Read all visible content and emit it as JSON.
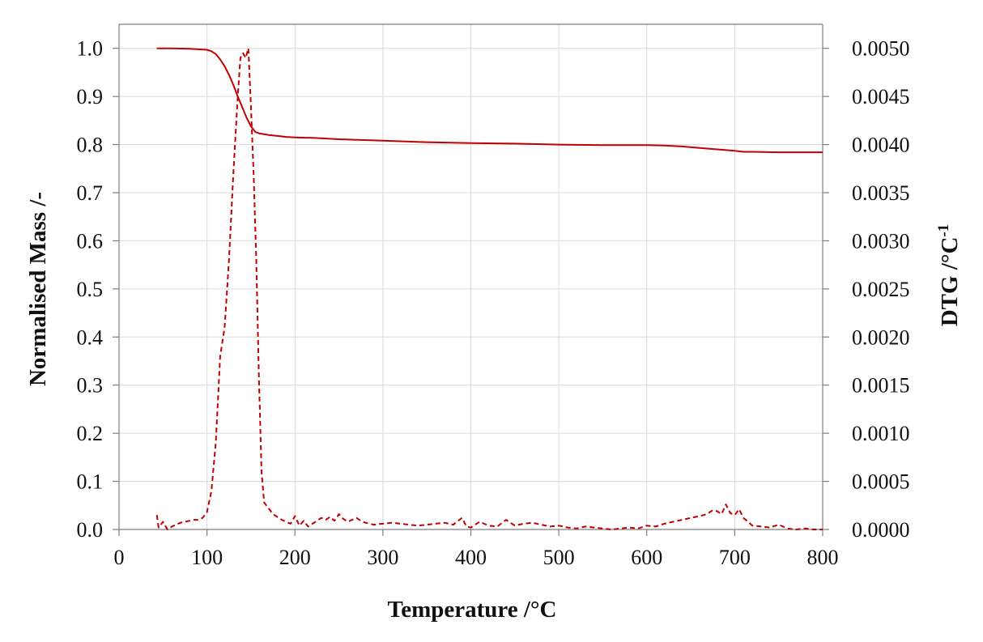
{
  "chart_data": {
    "type": "line",
    "xlabel": "Temperature /°C",
    "ylabel": "Normalised Mass /-",
    "y2label_main": "DTG  /°C",
    "y2label_sup": "-1",
    "xlim": [
      0,
      800
    ],
    "ylim": [
      0,
      1.05
    ],
    "y2lim": [
      0,
      0.00525
    ],
    "xticks": [
      "0",
      "100",
      "200",
      "300",
      "400",
      "500",
      "600",
      "700",
      "800"
    ],
    "yticks": [
      "0.0",
      "0.1",
      "0.2",
      "0.3",
      "0.4",
      "0.5",
      "0.6",
      "0.7",
      "0.8",
      "0.9",
      "1.0"
    ],
    "y2ticks": [
      "0.0000",
      "0.0005",
      "0.0010",
      "0.0015",
      "0.0020",
      "0.0025",
      "0.0030",
      "0.0035",
      "0.0040",
      "0.0045",
      "0.0050"
    ],
    "grid": true,
    "series_color": "#c00000",
    "series": [
      {
        "axis": "left",
        "style": "solid",
        "x": [
          43,
          60,
          80,
          100,
          105,
          110,
          115,
          120,
          125,
          130,
          135,
          140,
          145,
          150,
          155,
          160,
          170,
          180,
          190,
          200,
          220,
          250,
          300,
          350,
          400,
          450,
          500,
          550,
          600,
          620,
          640,
          660,
          680,
          700,
          710,
          720,
          750,
          800
        ],
        "y": [
          1.0,
          1.0,
          0.999,
          0.997,
          0.994,
          0.988,
          0.977,
          0.963,
          0.945,
          0.924,
          0.9,
          0.878,
          0.856,
          0.838,
          0.826,
          0.823,
          0.82,
          0.818,
          0.816,
          0.815,
          0.814,
          0.811,
          0.808,
          0.805,
          0.803,
          0.802,
          0.8,
          0.799,
          0.799,
          0.798,
          0.796,
          0.793,
          0.79,
          0.787,
          0.785,
          0.785,
          0.784,
          0.784
        ]
      },
      {
        "axis": "right",
        "style": "dashed",
        "x": [
          43,
          45,
          50,
          55,
          60,
          65,
          70,
          75,
          80,
          85,
          90,
          95,
          100,
          105,
          110,
          115,
          120,
          125,
          130,
          135,
          138,
          141,
          144,
          147,
          150,
          153,
          156,
          159,
          162,
          165,
          170,
          175,
          180,
          185,
          190,
          195,
          200,
          205,
          210,
          215,
          220,
          225,
          230,
          235,
          240,
          245,
          250,
          255,
          260,
          265,
          270,
          275,
          280,
          290,
          300,
          310,
          320,
          330,
          340,
          350,
          360,
          370,
          380,
          390,
          395,
          400,
          410,
          420,
          430,
          440,
          450,
          460,
          470,
          480,
          490,
          500,
          510,
          520,
          530,
          540,
          550,
          560,
          570,
          580,
          590,
          600,
          610,
          620,
          630,
          640,
          650,
          660,
          665,
          670,
          675,
          680,
          685,
          690,
          695,
          700,
          705,
          710,
          715,
          720,
          730,
          740,
          750,
          760,
          770,
          780,
          790,
          800
        ],
        "y": [
          0.00015,
          2e-05,
          8e-05,
          0.0,
          3e-05,
          5e-05,
          7e-05,
          8e-05,
          9e-05,
          0.0001,
          0.0001,
          0.00012,
          0.00018,
          0.0004,
          0.0009,
          0.0018,
          0.0021,
          0.0028,
          0.0037,
          0.0045,
          0.0049,
          0.00495,
          0.0049,
          0.005,
          0.0044,
          0.0037,
          0.0028,
          0.0016,
          0.0006,
          0.00028,
          0.00022,
          0.00016,
          0.00013,
          0.0001,
          8e-05,
          6e-05,
          0.00014,
          4e-05,
          9e-05,
          3e-05,
          6e-05,
          9e-05,
          0.00012,
          0.0001,
          0.00013,
          9e-05,
          0.00016,
          0.00011,
          8e-05,
          0.0001,
          0.00012,
          9e-05,
          7e-05,
          5e-05,
          6e-05,
          7e-05,
          6e-05,
          5e-05,
          4e-05,
          5e-05,
          6e-05,
          7e-05,
          5e-05,
          0.00012,
          3e-05,
          2e-05,
          8e-05,
          4e-05,
          3e-05,
          0.0001,
          4e-05,
          6e-05,
          7e-05,
          5e-05,
          3e-05,
          4e-05,
          2e-05,
          1e-05,
          3e-05,
          2e-05,
          1e-05,
          0.0,
          1e-05,
          2e-05,
          1e-05,
          4e-05,
          3e-05,
          6e-05,
          8e-05,
          0.0001,
          0.00012,
          0.00014,
          0.00015,
          0.00017,
          0.0002,
          0.00019,
          0.00016,
          0.00026,
          0.00017,
          0.00015,
          0.00021,
          0.00012,
          8e-05,
          4e-05,
          3e-05,
          2e-05,
          5e-05,
          1e-05,
          0.0,
          1e-05,
          0.0,
          0.0
        ]
      }
    ]
  }
}
